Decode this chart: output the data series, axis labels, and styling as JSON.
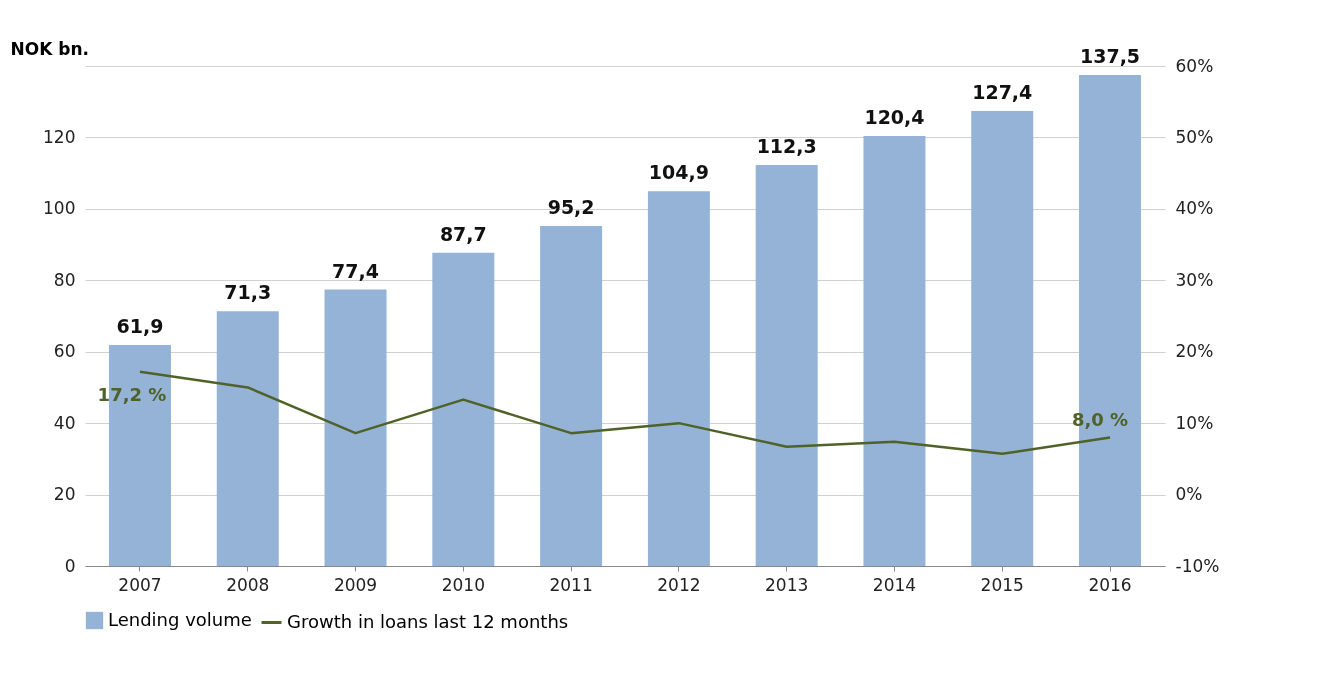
{
  "chart_data": {
    "type": "bar",
    "ylabel": "NOK bn.",
    "categories": [
      "2007",
      "2008",
      "2009",
      "2010",
      "2011",
      "2012",
      "2013",
      "2014",
      "2015",
      "2016"
    ],
    "series": [
      {
        "name": "Lending volume",
        "color": "#95b3d7",
        "values": [
          61.9,
          71.3,
          77.4,
          87.7,
          95.2,
          104.9,
          112.3,
          120.4,
          127.4,
          137.5
        ],
        "value_labels": [
          "61,9",
          "71,3",
          "77,4",
          "87,7",
          "95,2",
          "104,9",
          "112,3",
          "120,4",
          "127,4",
          "137,5"
        ]
      },
      {
        "name": "Growth in loans last 12 months",
        "type": "line",
        "axis": "y2",
        "color": "#4f6228",
        "values": [
          17.2,
          15.0,
          8.6,
          13.3,
          8.6,
          10.0,
          6.7,
          7.4,
          5.7,
          8.0
        ]
      }
    ],
    "ylim": [
      0,
      140
    ],
    "yticks": [
      0,
      20,
      40,
      60,
      80,
      100,
      120,
      {
        "value": 140,
        "label": null
      }
    ],
    "y2lim": [
      -10,
      60
    ],
    "y2ticks": [
      {
        "value": -10,
        "label": "-10%"
      },
      {
        "value": 0,
        "label": "0%"
      },
      {
        "value": 10,
        "label": "10%"
      },
      {
        "value": 20,
        "label": "20%"
      },
      {
        "value": 30,
        "label": "30%"
      },
      {
        "value": 40,
        "label": "40%"
      },
      {
        "value": 50,
        "label": "50%"
      },
      {
        "value": 60,
        "label": "60%"
      }
    ],
    "annotations": [
      "17,2 %",
      "8,0 %"
    ],
    "grid": "y",
    "legend": "bottom"
  }
}
